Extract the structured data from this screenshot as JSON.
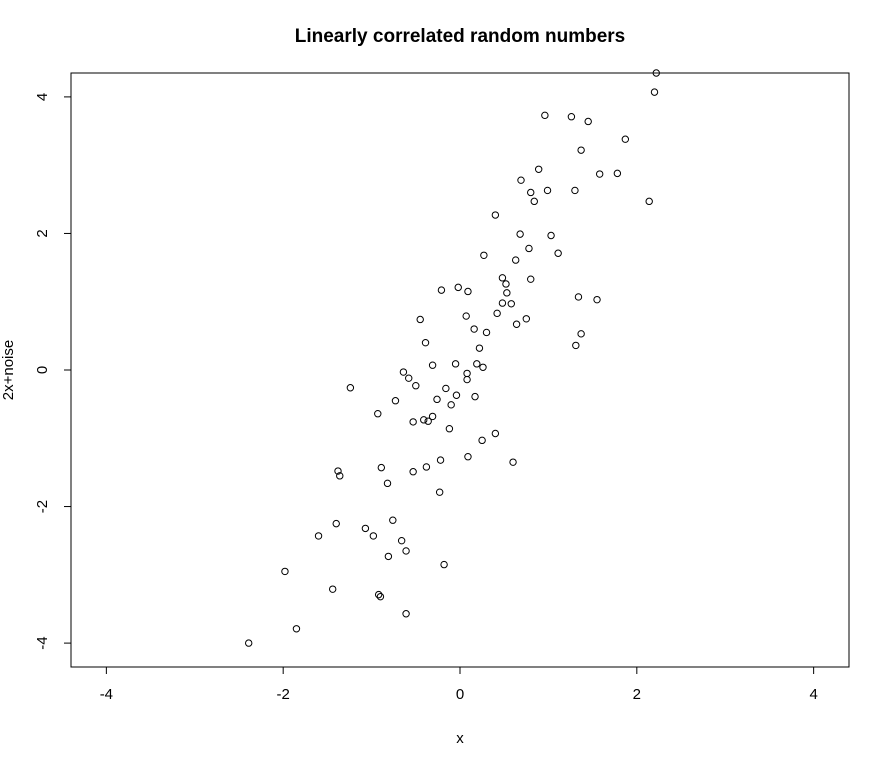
{
  "chart_data": {
    "type": "scatter",
    "title": "Linearly correlated random numbers",
    "xlabel": "x",
    "ylabel": "2x+noise",
    "xlim": [
      -4.4,
      4.4
    ],
    "ylim": [
      -4.35,
      4.35
    ],
    "xticks": [
      -4,
      -2,
      0,
      2,
      4
    ],
    "yticks": [
      -4,
      -2,
      0,
      2,
      4
    ],
    "grid": false,
    "points": [
      [
        2.22,
        4.35
      ],
      [
        2.2,
        4.07
      ],
      [
        0.96,
        3.73
      ],
      [
        1.26,
        3.71
      ],
      [
        1.45,
        3.64
      ],
      [
        1.87,
        3.38
      ],
      [
        1.37,
        3.22
      ],
      [
        0.89,
        2.94
      ],
      [
        1.58,
        2.87
      ],
      [
        1.78,
        2.88
      ],
      [
        0.69,
        2.78
      ],
      [
        0.8,
        2.6
      ],
      [
        0.99,
        2.63
      ],
      [
        1.3,
        2.63
      ],
      [
        0.84,
        2.47
      ],
      [
        2.14,
        2.47
      ],
      [
        0.4,
        2.27
      ],
      [
        0.68,
        1.99
      ],
      [
        1.03,
        1.97
      ],
      [
        0.78,
        1.78
      ],
      [
        1.11,
        1.71
      ],
      [
        0.27,
        1.68
      ],
      [
        0.63,
        1.61
      ],
      [
        0.48,
        1.35
      ],
      [
        0.52,
        1.26
      ],
      [
        0.8,
        1.33
      ],
      [
        0.53,
        1.13
      ],
      [
        -0.02,
        1.21
      ],
      [
        -0.21,
        1.17
      ],
      [
        0.09,
        1.15
      ],
      [
        1.34,
        1.07
      ],
      [
        1.55,
        1.03
      ],
      [
        0.48,
        0.98
      ],
      [
        0.58,
        0.97
      ],
      [
        0.42,
        0.83
      ],
      [
        0.07,
        0.79
      ],
      [
        0.75,
        0.75
      ],
      [
        -0.45,
        0.74
      ],
      [
        0.64,
        0.67
      ],
      [
        0.16,
        0.6
      ],
      [
        0.3,
        0.55
      ],
      [
        1.37,
        0.53
      ],
      [
        -0.39,
        0.4
      ],
      [
        1.31,
        0.36
      ],
      [
        0.22,
        0.32
      ],
      [
        0.19,
        0.09
      ],
      [
        -0.05,
        0.09
      ],
      [
        -0.31,
        0.07
      ],
      [
        0.26,
        0.04
      ],
      [
        -0.64,
        -0.03
      ],
      [
        0.08,
        -0.05
      ],
      [
        -0.58,
        -0.12
      ],
      [
        0.08,
        -0.14
      ],
      [
        -0.5,
        -0.23
      ],
      [
        -1.24,
        -0.26
      ],
      [
        -0.16,
        -0.27
      ],
      [
        -0.04,
        -0.37
      ],
      [
        0.17,
        -0.39
      ],
      [
        -0.26,
        -0.43
      ],
      [
        -0.73,
        -0.45
      ],
      [
        -0.1,
        -0.51
      ],
      [
        -0.93,
        -0.64
      ],
      [
        -0.31,
        -0.68
      ],
      [
        -0.41,
        -0.73
      ],
      [
        -0.36,
        -0.75
      ],
      [
        -0.53,
        -0.76
      ],
      [
        -0.12,
        -0.86
      ],
      [
        0.4,
        -0.93
      ],
      [
        0.25,
        -1.03
      ],
      [
        0.09,
        -1.27
      ],
      [
        -0.22,
        -1.32
      ],
      [
        0.6,
        -1.35
      ],
      [
        -0.38,
        -1.42
      ],
      [
        -0.89,
        -1.43
      ],
      [
        -1.38,
        -1.48
      ],
      [
        -0.53,
        -1.49
      ],
      [
        -1.36,
        -1.55
      ],
      [
        -0.82,
        -1.66
      ],
      [
        -0.23,
        -1.79
      ],
      [
        -0.76,
        -2.2
      ],
      [
        -1.4,
        -2.25
      ],
      [
        -1.07,
        -2.32
      ],
      [
        -0.98,
        -2.43
      ],
      [
        -1.6,
        -2.43
      ],
      [
        -0.66,
        -2.5
      ],
      [
        -0.61,
        -2.65
      ],
      [
        -0.81,
        -2.73
      ],
      [
        -0.18,
        -2.85
      ],
      [
        -1.98,
        -2.95
      ],
      [
        -1.44,
        -3.21
      ],
      [
        -0.92,
        -3.29
      ],
      [
        -0.9,
        -3.32
      ],
      [
        -0.61,
        -3.57
      ],
      [
        -1.85,
        -3.79
      ],
      [
        -2.39,
        -4.0
      ]
    ]
  }
}
